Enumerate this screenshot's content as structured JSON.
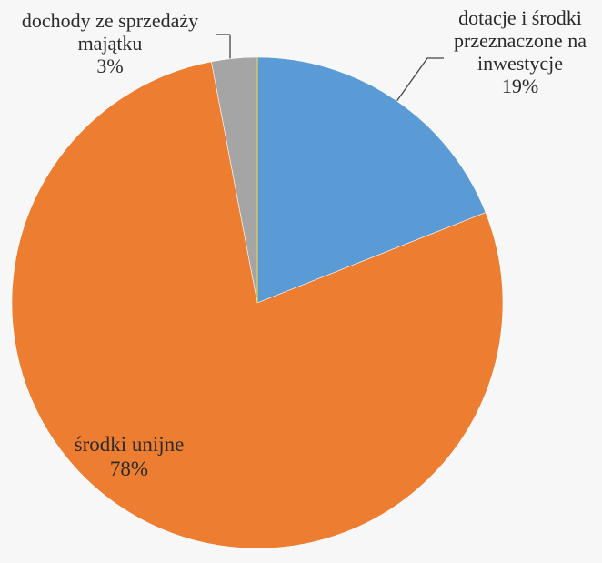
{
  "chart_data": {
    "type": "pie",
    "slices": [
      {
        "label_lines": [
          "dotacje i środki",
          "przeznaczone na",
          "inwestycje"
        ],
        "pct_label": "19%",
        "value": 19,
        "color": "#5b9bd5"
      },
      {
        "label_lines": [
          "środki unijne"
        ],
        "pct_label": "78%",
        "value": 78,
        "color": "#ed7d31"
      },
      {
        "label_lines": [
          "dochody ze sprzedaży",
          "majątku"
        ],
        "pct_label": "3%",
        "value": 3,
        "color": "#a5a5a5"
      }
    ],
    "start_angle_deg": 0,
    "direction": "clockwise",
    "legend": "none",
    "leader_lines": true
  }
}
